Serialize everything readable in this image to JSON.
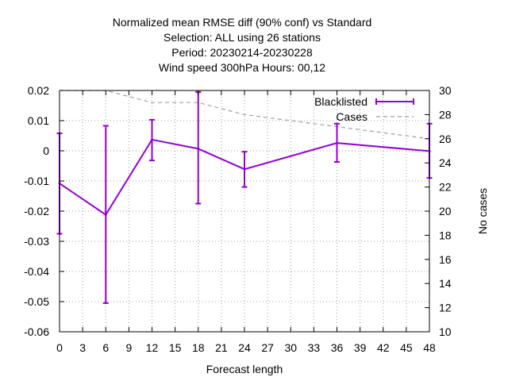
{
  "chart_data": {
    "type": "line",
    "title_lines": [
      "Normalized mean RMSE diff (90% conf) vs Standard",
      "Selection: ALL using    26 stations",
      "Period: 20230214-20230228",
      "Wind speed 300hPa   Hours:  00,12"
    ],
    "xlabel": "Forecast length",
    "ylabel": "",
    "y2label": "No cases",
    "xlim": [
      0,
      48
    ],
    "ylim": [
      -0.06,
      0.02
    ],
    "y2lim": [
      10,
      30
    ],
    "x_ticks": [
      0,
      3,
      6,
      9,
      12,
      15,
      18,
      21,
      24,
      27,
      30,
      33,
      36,
      39,
      42,
      45,
      48
    ],
    "y_ticks": [
      0.02,
      0.01,
      0,
      -0.01,
      -0.02,
      -0.03,
      -0.04,
      -0.05,
      -0.06
    ],
    "y_tick_labels": [
      "0.02",
      "0.01",
      "0",
      "-0.01",
      "-0.02",
      "-0.03",
      "-0.04",
      "-0.05",
      "-0.06"
    ],
    "y2_ticks": [
      30,
      28,
      26,
      24,
      22,
      20,
      18,
      16,
      14,
      12,
      10
    ],
    "grid": true,
    "legend_position": "top-right",
    "series": [
      {
        "name": "Blacklisted",
        "color": "#9400d3",
        "style": "line-errorbars",
        "axis": "y",
        "x": [
          0,
          6,
          12,
          18,
          24,
          36,
          48
        ],
        "y": [
          -0.0108,
          -0.0212,
          0.0037,
          0.0007,
          -0.0061,
          0.0026,
          -0.0001
        ],
        "y_low": [
          -0.0275,
          -0.0505,
          -0.0032,
          -0.0175,
          -0.012,
          -0.0037,
          -0.009
        ],
        "y_high": [
          0.0058,
          0.0083,
          0.0103,
          0.0195,
          -0.0003,
          0.009,
          0.009
        ]
      },
      {
        "name": "Cases",
        "color": "#a0a0a0",
        "style": "dashed",
        "axis": "y2",
        "x": [
          0,
          6,
          12,
          18,
          24,
          36,
          48
        ],
        "y": [
          30,
          30,
          29,
          29,
          28,
          27,
          26
        ]
      }
    ]
  }
}
